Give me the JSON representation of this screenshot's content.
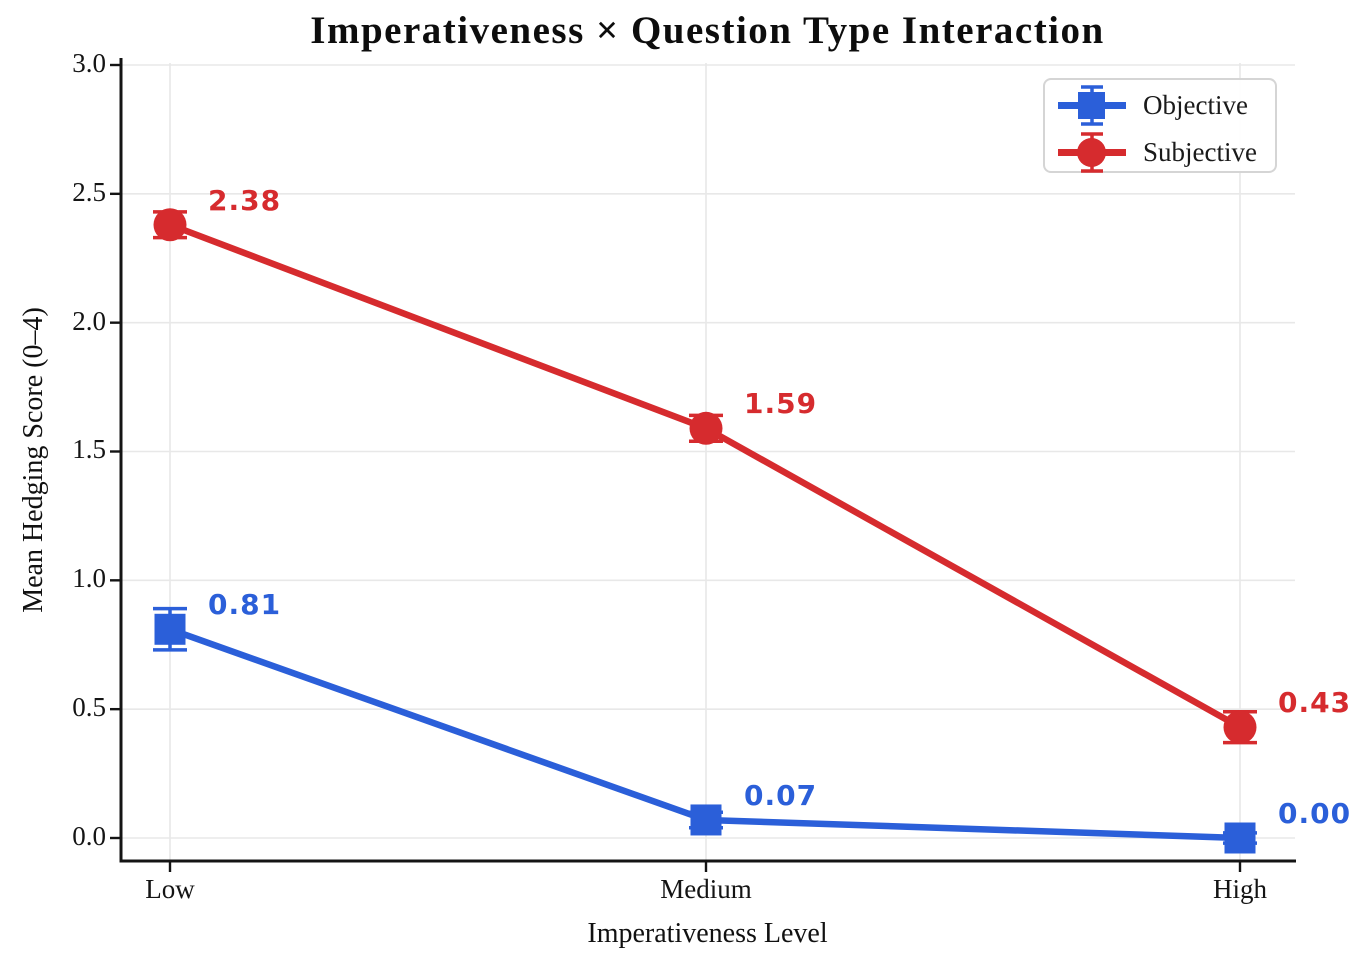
{
  "chart_data": {
    "type": "line",
    "title": "Imperativeness × Question Type Interaction",
    "xlabel": "Imperativeness Level",
    "ylabel": "Mean Hedging Score (0–4)",
    "categories": [
      "Low",
      "Medium",
      "High"
    ],
    "yticks": [
      "0.0",
      "0.5",
      "1.0",
      "1.5",
      "2.0",
      "2.5",
      "3.0"
    ],
    "ylim": [
      0.0,
      3.0
    ],
    "grid": true,
    "legend_position": "upper right",
    "grid_color": "#e8e8e8",
    "axis_color": "#141414",
    "series": [
      {
        "name": "Objective",
        "marker": "square",
        "color": "#2b5fd9",
        "values": [
          0.81,
          0.07,
          0.0
        ],
        "errors": [
          0.08,
          0.03,
          0.02
        ],
        "labels": [
          "0.81",
          "0.07",
          "0.00"
        ]
      },
      {
        "name": "Subjective",
        "marker": "circle",
        "color": "#d62b2e",
        "values": [
          2.38,
          1.59,
          0.43
        ],
        "errors": [
          0.05,
          0.05,
          0.06
        ],
        "labels": [
          "2.38",
          "1.59",
          "0.43"
        ]
      }
    ]
  }
}
